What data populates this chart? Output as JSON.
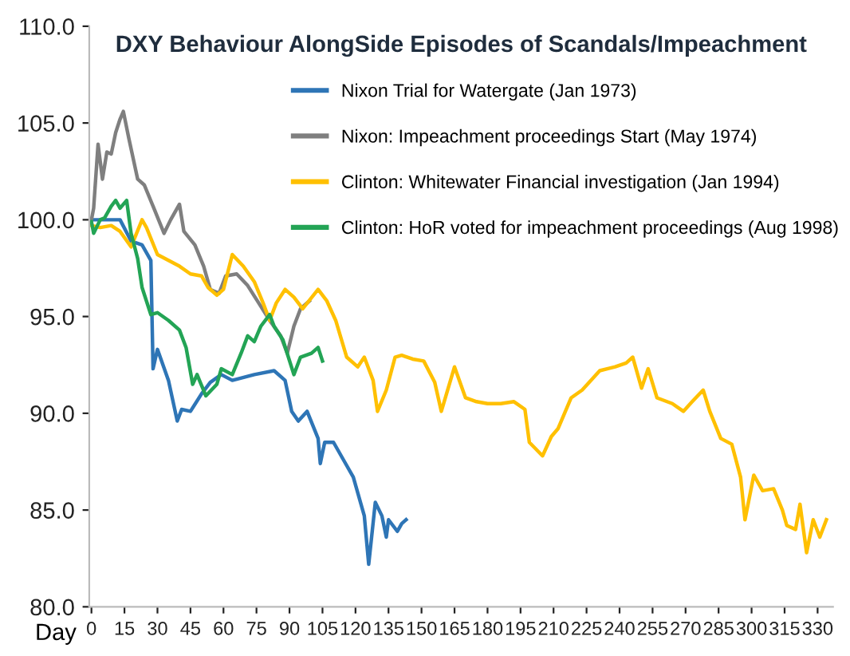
{
  "chart_data": {
    "type": "line",
    "title": "DXY Behaviour AlongSide Episodes of Scandals/Impeachment",
    "xlabel": "Day",
    "xlim": [
      -1,
      337
    ],
    "xticks": [
      0,
      15,
      30,
      45,
      60,
      75,
      90,
      105,
      120,
      135,
      150,
      165,
      180,
      195,
      210,
      225,
      240,
      255,
      270,
      285,
      300,
      315,
      330
    ],
    "ylim": [
      80,
      110
    ],
    "yticks": [
      {
        "value": 80,
        "label": "80.0"
      },
      {
        "value": 85,
        "label": "85.0"
      },
      {
        "value": 90,
        "label": "90.0"
      },
      {
        "value": 95,
        "label": "95.0"
      },
      {
        "value": 100,
        "label": "100.0"
      },
      {
        "value": 105,
        "label": "105.0"
      },
      {
        "value": 110,
        "label": "110.0"
      }
    ],
    "grid": false,
    "legend": "top right",
    "marker": "none",
    "line_style": "solid",
    "series": [
      {
        "name": "Nixon Trial for Watergate (Jan 1973)",
        "color": "#2e75b6",
        "x": [
          0,
          13,
          18,
          23,
          27,
          28,
          30,
          35,
          39,
          41,
          45,
          50,
          54,
          59,
          64,
          74,
          83,
          88,
          91,
          94,
          98,
          103,
          104,
          106,
          110,
          115,
          119,
          124,
          126,
          129,
          132,
          134,
          135,
          139,
          141,
          143
        ],
        "values": [
          100,
          100,
          98.9,
          98.7,
          97.9,
          92.3,
          93.3,
          91.7,
          89.6,
          90.2,
          90.1,
          91.0,
          91.6,
          92.0,
          91.7,
          92.0,
          92.2,
          91.7,
          90.1,
          89.6,
          90.1,
          88.7,
          87.4,
          88.5,
          88.5,
          87.5,
          86.7,
          84.7,
          82.2,
          85.4,
          84.7,
          83.6,
          84.5,
          83.9,
          84.3,
          84.5
        ]
      },
      {
        "name": "Nixon: Impeachment proceedings Start (May 1974)",
        "color": "#7f7f7f",
        "x": [
          0,
          1,
          3,
          5,
          7,
          9,
          11,
          13,
          14.5,
          17,
          21,
          24,
          28,
          33,
          36,
          40,
          42,
          47,
          51,
          54,
          58,
          61,
          66,
          71,
          76,
          81,
          86,
          89,
          92,
          95,
          99
        ],
        "values": [
          100,
          100.6,
          103.9,
          102.1,
          103.5,
          103.4,
          104.5,
          105.2,
          105.6,
          104.2,
          102.1,
          101.8,
          100.7,
          99.3,
          100,
          100.8,
          99.4,
          98.7,
          97.6,
          96.4,
          96.2,
          97.1,
          97.2,
          96.6,
          95.7,
          94.8,
          94.0,
          93.1,
          94.5,
          95.4,
          95.8
        ]
      },
      {
        "name": "Clinton: Whitewater Financial investigation (Jan 1994)",
        "color": "#ffc000",
        "x": [
          0,
          4,
          9,
          13,
          18,
          23,
          25,
          30,
          35,
          40,
          45,
          50,
          53,
          57,
          60,
          64,
          69,
          74,
          78,
          81,
          84,
          88,
          92,
          96,
          103,
          107,
          111,
          116,
          121,
          124,
          128,
          130,
          134,
          138,
          141,
          146,
          151,
          156,
          159,
          165,
          170,
          175,
          180,
          186,
          192,
          197,
          199,
          205,
          209,
          212,
          218,
          223,
          231,
          238,
          243,
          246,
          250,
          253,
          257,
          264,
          269,
          273,
          278,
          281,
          286,
          291,
          295,
          297,
          301,
          305,
          310,
          314,
          316,
          320,
          322,
          325,
          328,
          331,
          334
        ],
        "values": [
          99.7,
          99.6,
          99.7,
          99.4,
          98.6,
          100,
          99.6,
          98.2,
          97.9,
          97.6,
          97.2,
          97.1,
          96.5,
          96.1,
          96.4,
          98.2,
          97.6,
          96.8,
          95.7,
          94.8,
          95.7,
          96.4,
          96.0,
          95.4,
          96.4,
          95.8,
          94.8,
          92.9,
          92.4,
          92.9,
          91.7,
          90.1,
          91.2,
          92.9,
          93.0,
          92.8,
          92.7,
          91.6,
          90.1,
          92.4,
          90.8,
          90.6,
          90.5,
          90.5,
          90.6,
          90.2,
          88.5,
          87.8,
          88.8,
          89.2,
          90.8,
          91.2,
          92.2,
          92.4,
          92.6,
          92.9,
          91.3,
          92.3,
          90.8,
          90.5,
          90.1,
          90.6,
          91.2,
          90.1,
          88.7,
          88.4,
          86.7,
          84.5,
          86.8,
          86.0,
          86.1,
          85.0,
          84.2,
          84.0,
          85.3,
          82.8,
          84.5,
          83.6,
          84.5
        ]
      },
      {
        "name": "Clinton: HoR voted for impeachment proceedings (Aug 1998)",
        "color": "#23a455",
        "x": [
          0,
          1,
          4,
          6,
          9,
          11,
          13,
          16,
          18,
          21,
          23,
          27,
          30,
          35,
          40,
          43,
          46,
          48,
          52,
          57,
          59,
          64,
          68,
          71,
          74,
          77,
          81,
          83,
          87,
          92,
          95,
          100,
          103,
          105
        ],
        "values": [
          99.9,
          99.3,
          100,
          100.1,
          100.7,
          101.0,
          100.6,
          101.0,
          99.3,
          98.0,
          96.5,
          95.1,
          95.2,
          94.8,
          94.3,
          93.4,
          91.5,
          92.0,
          90.9,
          91.5,
          92.3,
          92.0,
          93.1,
          94.0,
          93.7,
          94.5,
          95.1,
          94.5,
          93.8,
          92.0,
          92.9,
          93.1,
          93.4,
          92.7
        ]
      }
    ]
  }
}
